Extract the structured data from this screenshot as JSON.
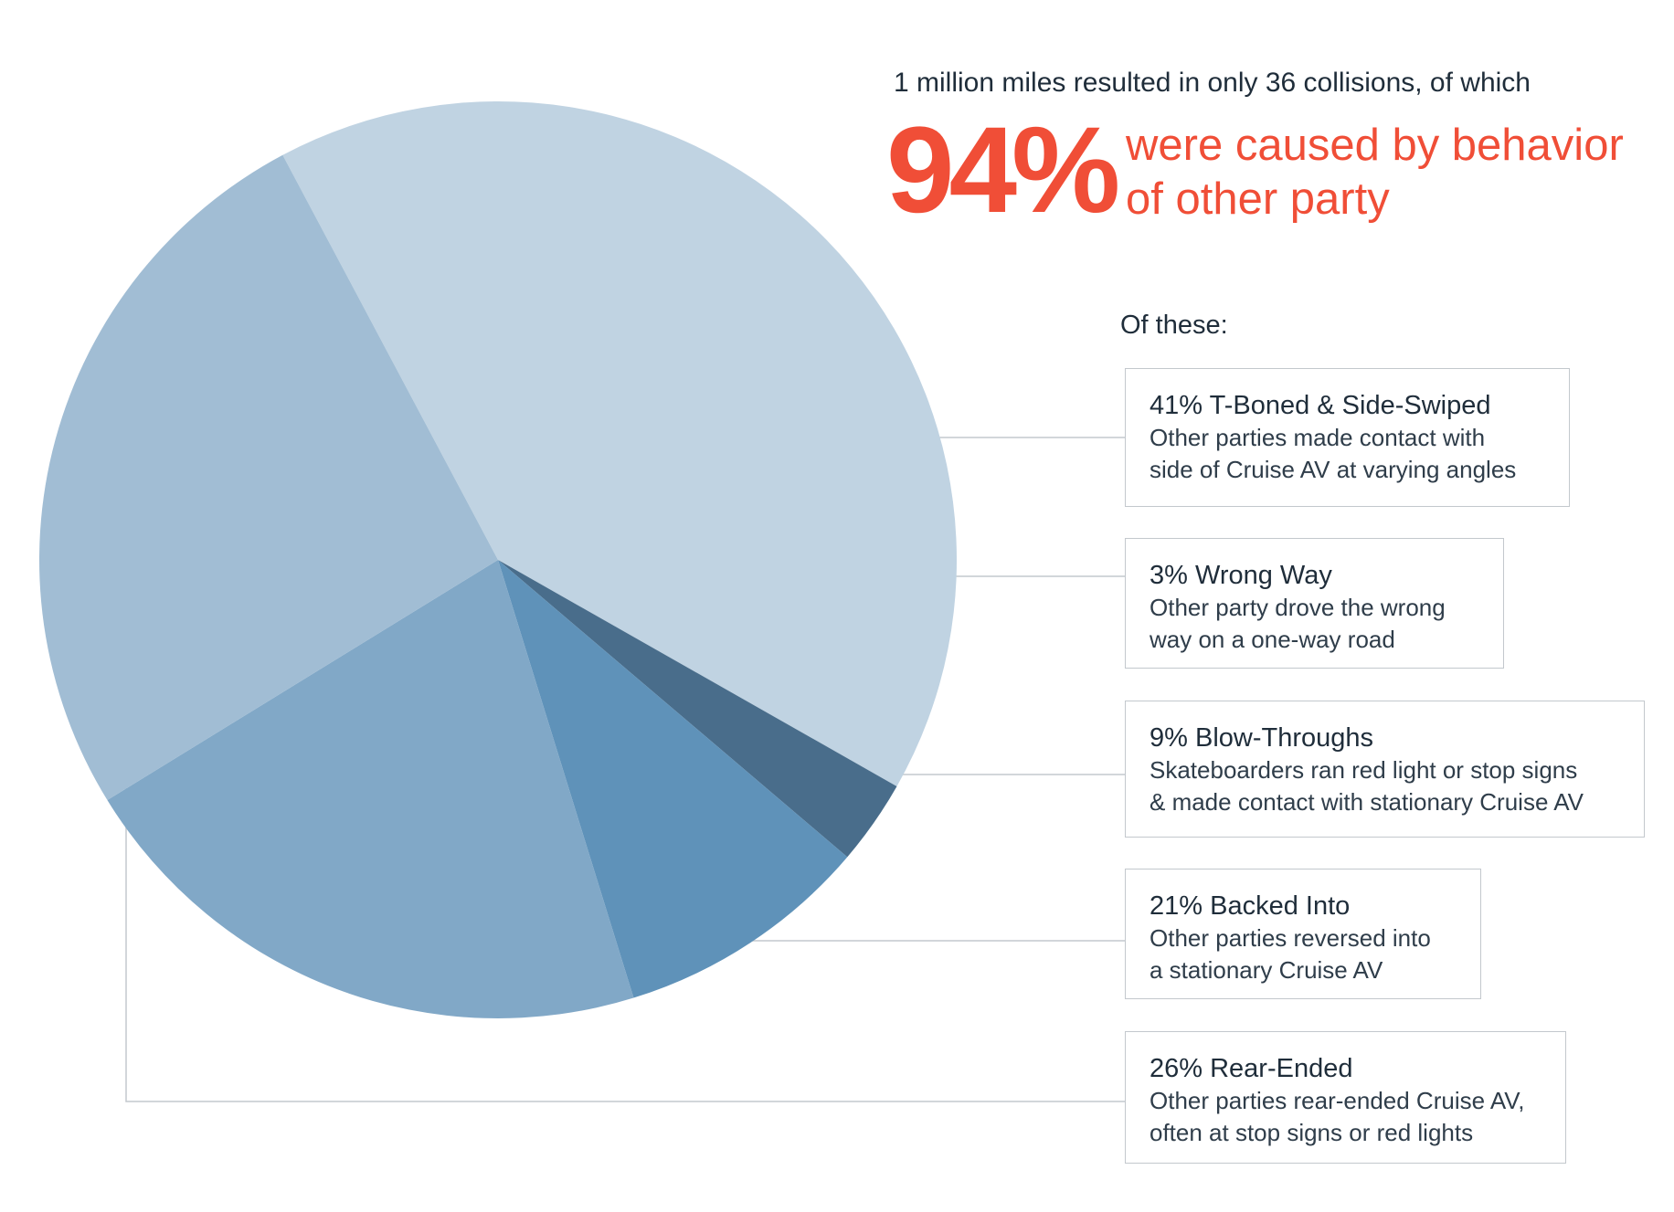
{
  "header": {
    "intro": "1 million miles resulted in only 36 collisions, of which",
    "big_percent": "94%",
    "headline_line1": "were caused by behavior",
    "headline_line2": "of other party"
  },
  "of_these_label": "Of these:",
  "categories": [
    {
      "title": "41% T-Boned & Side-Swiped",
      "desc_line1": "Other parties made contact with",
      "desc_line2": "side of Cruise AV at varying angles"
    },
    {
      "title": "3% Wrong Way",
      "desc_line1": "Other party drove the wrong",
      "desc_line2": "way on a one-way road"
    },
    {
      "title": "9% Blow-Throughs",
      "desc_line1": "Skateboarders ran red light or stop signs",
      "desc_line2": "& made contact with stationary Cruise AV"
    },
    {
      "title": "21% Backed Into",
      "desc_line1": "Other parties reversed into",
      "desc_line2": "a stationary Cruise AV"
    },
    {
      "title": "26% Rear-Ended",
      "desc_line1": "Other parties rear-ended Cruise AV,",
      "desc_line2": "often at stop signs or red lights"
    }
  ],
  "chart_data": {
    "type": "pie",
    "slices": [
      {
        "label": "T-Boned & Side-Swiped",
        "value": 41,
        "color": "#c0d3e2"
      },
      {
        "label": "Wrong Way",
        "value": 3,
        "color": "#496d8b"
      },
      {
        "label": "Blow-Throughs",
        "value": 9,
        "color": "#5f92b9"
      },
      {
        "label": "Backed Into",
        "value": 21,
        "color": "#81a8c7"
      },
      {
        "label": "Rear-Ended",
        "value": 26,
        "color": "#a1bdd4"
      }
    ],
    "leader_line_color": "#c3c8cd"
  },
  "colors": {
    "accent": "#f04e37",
    "text": "#1f2d3a"
  }
}
